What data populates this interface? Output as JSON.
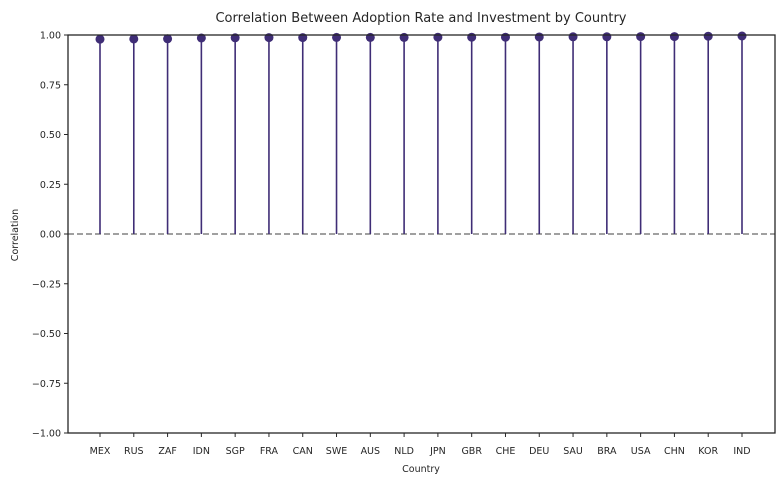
{
  "chart_data": {
    "type": "stem",
    "title": "Correlation Between Adoption Rate and Investment by Country",
    "xlabel": "Country",
    "ylabel": "Correlation",
    "ylim": [
      -1.0,
      1.0
    ],
    "yticks": [
      "−1.00",
      "−0.75",
      "−0.50",
      "−0.25",
      "0.00",
      "0.25",
      "0.50",
      "0.75",
      "1.00"
    ],
    "ytick_values": [
      -1.0,
      -0.75,
      -0.5,
      -0.25,
      0.0,
      0.25,
      0.5,
      0.75,
      1.0
    ],
    "categories": [
      "MEX",
      "RUS",
      "ZAF",
      "IDN",
      "SGP",
      "FRA",
      "CAN",
      "SWE",
      "AUS",
      "NLD",
      "JPN",
      "GBR",
      "CHE",
      "DEU",
      "SAU",
      "BRA",
      "USA",
      "CHN",
      "KOR",
      "IND"
    ],
    "values": [
      0.979,
      0.98,
      0.981,
      0.985,
      0.986,
      0.987,
      0.987,
      0.988,
      0.988,
      0.988,
      0.989,
      0.989,
      0.989,
      0.99,
      0.991,
      0.991,
      0.992,
      0.992,
      0.994,
      0.995
    ],
    "reference_line": 0.0,
    "grid": false,
    "colors": {
      "stem": "#3f2d76",
      "marker": "#3f2d76",
      "reference": "#808080",
      "axis": "#262626"
    }
  }
}
